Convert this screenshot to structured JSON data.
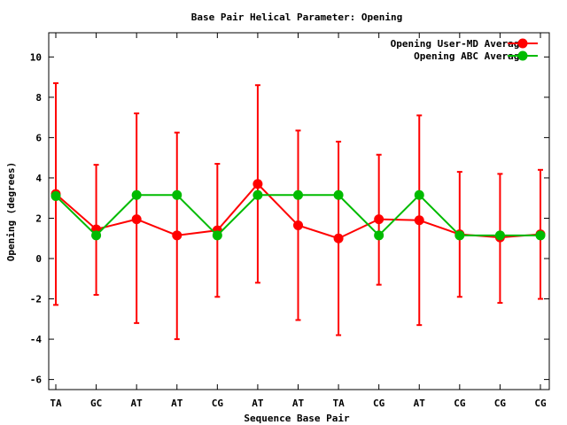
{
  "chart_data": {
    "type": "line",
    "title": "Base Pair Helical Parameter: Opening",
    "xlabel": "Sequence Base Pair",
    "ylabel": "Opening (degrees)",
    "categories": [
      "TA",
      "GC",
      "AT",
      "AT",
      "CG",
      "AT",
      "AT",
      "TA",
      "CG",
      "AT",
      "CG",
      "CG",
      "CG"
    ],
    "ylim": [
      -6.5,
      11.2
    ],
    "yticks": [
      -6,
      -4,
      -2,
      0,
      2,
      4,
      6,
      8,
      10
    ],
    "ytick_labels": [
      "-6",
      "-4",
      "-2",
      "0",
      "2",
      "4",
      "6",
      "8",
      "10"
    ],
    "legend_position": "top-right",
    "series": [
      {
        "name": "Opening User-MD Average",
        "color": "#ff0000",
        "values": [
          3.2,
          1.45,
          1.95,
          1.15,
          1.4,
          3.7,
          1.65,
          1.0,
          1.95,
          1.9,
          1.2,
          1.05,
          1.2
        ],
        "err_low": [
          -2.3,
          -1.8,
          -3.2,
          -4.0,
          -1.9,
          -1.2,
          -3.05,
          -3.8,
          -1.3,
          -3.3,
          -1.9,
          -2.2,
          -2.0
        ],
        "err_high": [
          8.7,
          4.65,
          7.2,
          6.25,
          4.7,
          8.6,
          6.35,
          5.8,
          5.15,
          7.1,
          4.3,
          4.2,
          4.4
        ]
      },
      {
        "name": "Opening ABC Average",
        "color": "#00bb00",
        "values": [
          3.1,
          1.15,
          3.15,
          3.15,
          1.15,
          3.15,
          3.15,
          3.15,
          1.15,
          3.15,
          1.15,
          1.15,
          1.15
        ]
      }
    ]
  }
}
